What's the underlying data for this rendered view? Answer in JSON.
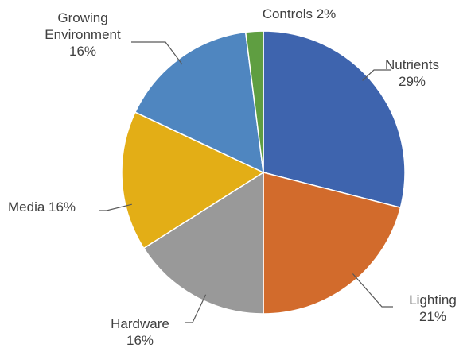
{
  "chart_data": {
    "type": "pie",
    "title": "",
    "categories": [
      "Nutrients",
      "Lighting",
      "Hardware",
      "Media",
      "Growing Environment",
      "Controls"
    ],
    "values": [
      29,
      21,
      16,
      16,
      16,
      2
    ],
    "colors": [
      "#3E64AE",
      "#D26B2C",
      "#999999",
      "#E3AE16",
      "#4F86C0",
      "#5F9E41"
    ],
    "labels": [
      {
        "category": "Nutrients",
        "lines": [
          "Nutrients",
          "29%"
        ]
      },
      {
        "category": "Lighting",
        "lines": [
          "Lighting",
          "21%"
        ]
      },
      {
        "category": "Hardware",
        "lines": [
          "Hardware",
          "16%"
        ]
      },
      {
        "category": "Media",
        "lines": [
          "Media 16%"
        ]
      },
      {
        "category": "Growing Environment",
        "lines": [
          "Growing",
          "Environment",
          "16%"
        ]
      },
      {
        "category": "Controls",
        "lines": [
          "Controls 2%"
        ]
      }
    ],
    "start_angle": "12 o'clock",
    "direction": "clockwise",
    "data_labels": "outside with leader lines",
    "legend": "none"
  }
}
